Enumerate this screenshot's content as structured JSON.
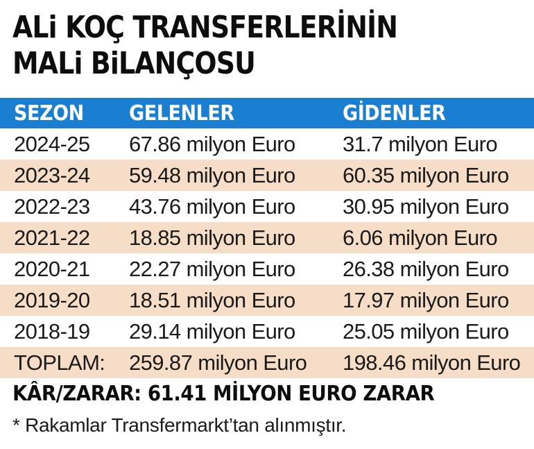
{
  "title": {
    "line1": "ALi KOÇ TRANSFERLERİNİN",
    "line2": "MALi BiLANÇOSU"
  },
  "colors": {
    "header_bg": "#1a7fd1",
    "row_shade": "#f6ddc8",
    "text": "#1a1a1a"
  },
  "chart_data": {
    "type": "table",
    "title": "ALi KOÇ TRANSFERLERİNİN MALi BiLANÇOSU",
    "columns": [
      "SEZON",
      "GELENLER",
      "GİDENLER"
    ],
    "rows": [
      [
        "2024-25",
        "67.86 milyon Euro",
        "31.7 milyon Euro"
      ],
      [
        "2023-24",
        "59.48 milyon Euro",
        "60.35 milyon Euro"
      ],
      [
        "2022-23",
        "43.76 milyon Euro",
        "30.95 milyon Euro"
      ],
      [
        "2021-22",
        "18.85 milyon Euro",
        "6.06 milyon Euro"
      ],
      [
        "2020-21",
        "22.27 milyon Euro",
        "26.38 milyon Euro"
      ],
      [
        "2019-20",
        "18.51 milyon Euro",
        "17.97 milyon Euro"
      ],
      [
        "2018-19",
        "29.14 milyon Euro",
        "25.05 milyon Euro"
      ],
      [
        "TOPLAM:",
        "259.87 milyon Euro",
        "198.46 milyon Euro"
      ]
    ]
  },
  "summary": "KÂR/ZARAR: 61.41 MİLYON EURO ZARAR",
  "footnote": "* Rakamlar Transfermarkt’tan alınmıştır."
}
